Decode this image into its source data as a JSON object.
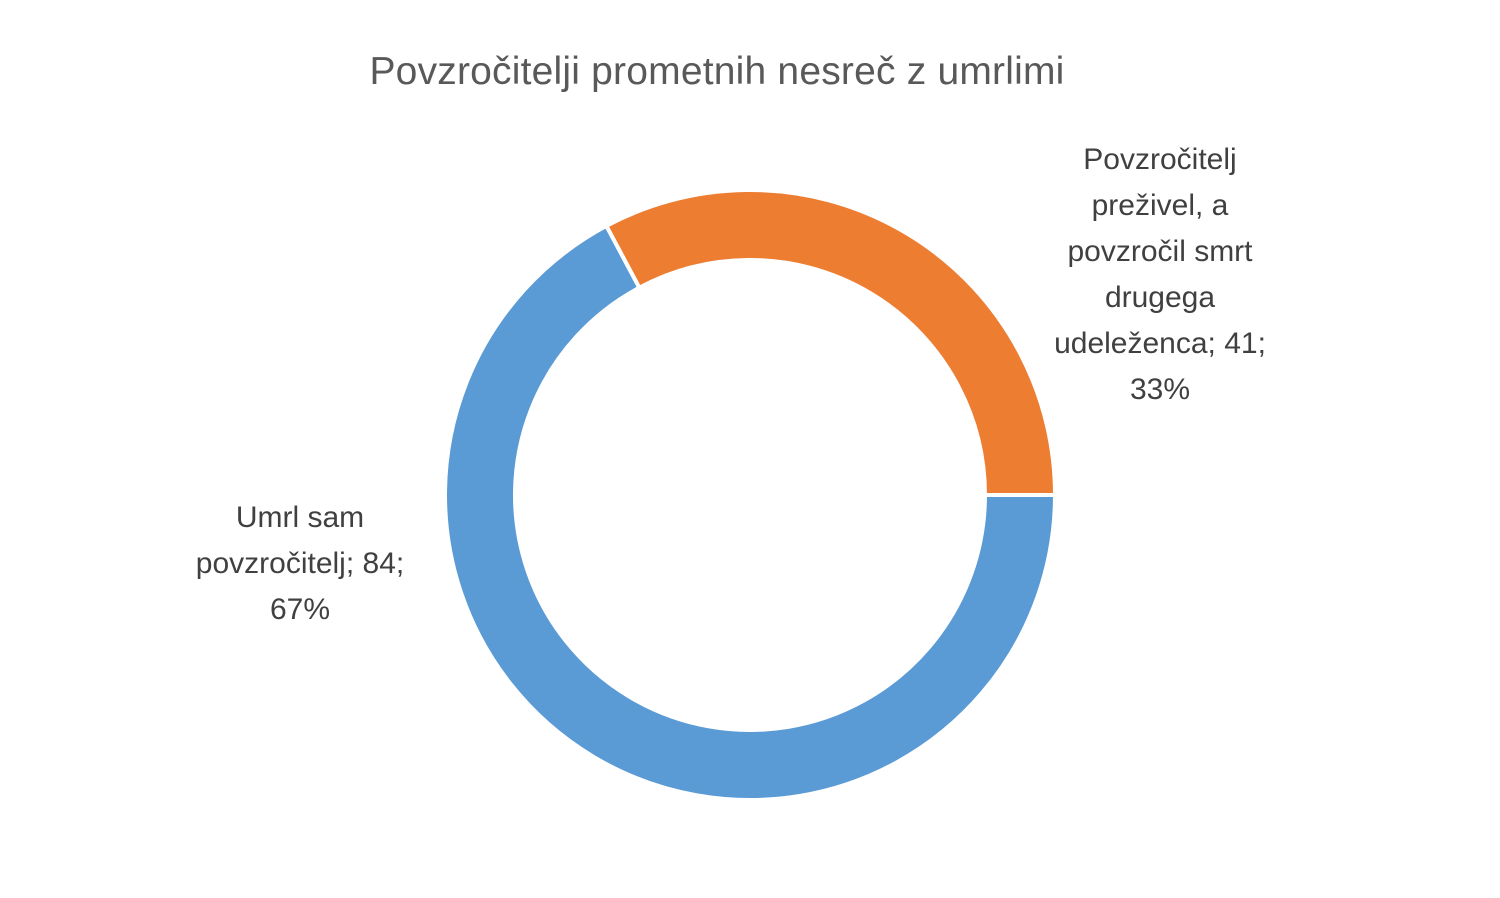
{
  "chart_data": {
    "type": "pie",
    "variant": "donut",
    "title": "Povzročitelji prometnih nesreč z umrlimi",
    "slices": [
      {
        "name": "Umrl sam povzročitelj",
        "value": 84,
        "percent": "67%",
        "color": "#5B9BD5",
        "label_lines": [
          "Umrl sam",
          "povzročitelj; 84;",
          "67%"
        ]
      },
      {
        "name": "Povzročitelj preživel, a povzročil smrt drugega udeleženca",
        "value": 41,
        "percent": "33%",
        "color": "#ED7D31",
        "label_lines": [
          "Povzročitelj",
          "preživel, a",
          "povzročil smrt",
          "drugega",
          "udeleženca; 41;",
          "33%"
        ]
      }
    ],
    "legend": "none",
    "data_labels": "outside"
  }
}
